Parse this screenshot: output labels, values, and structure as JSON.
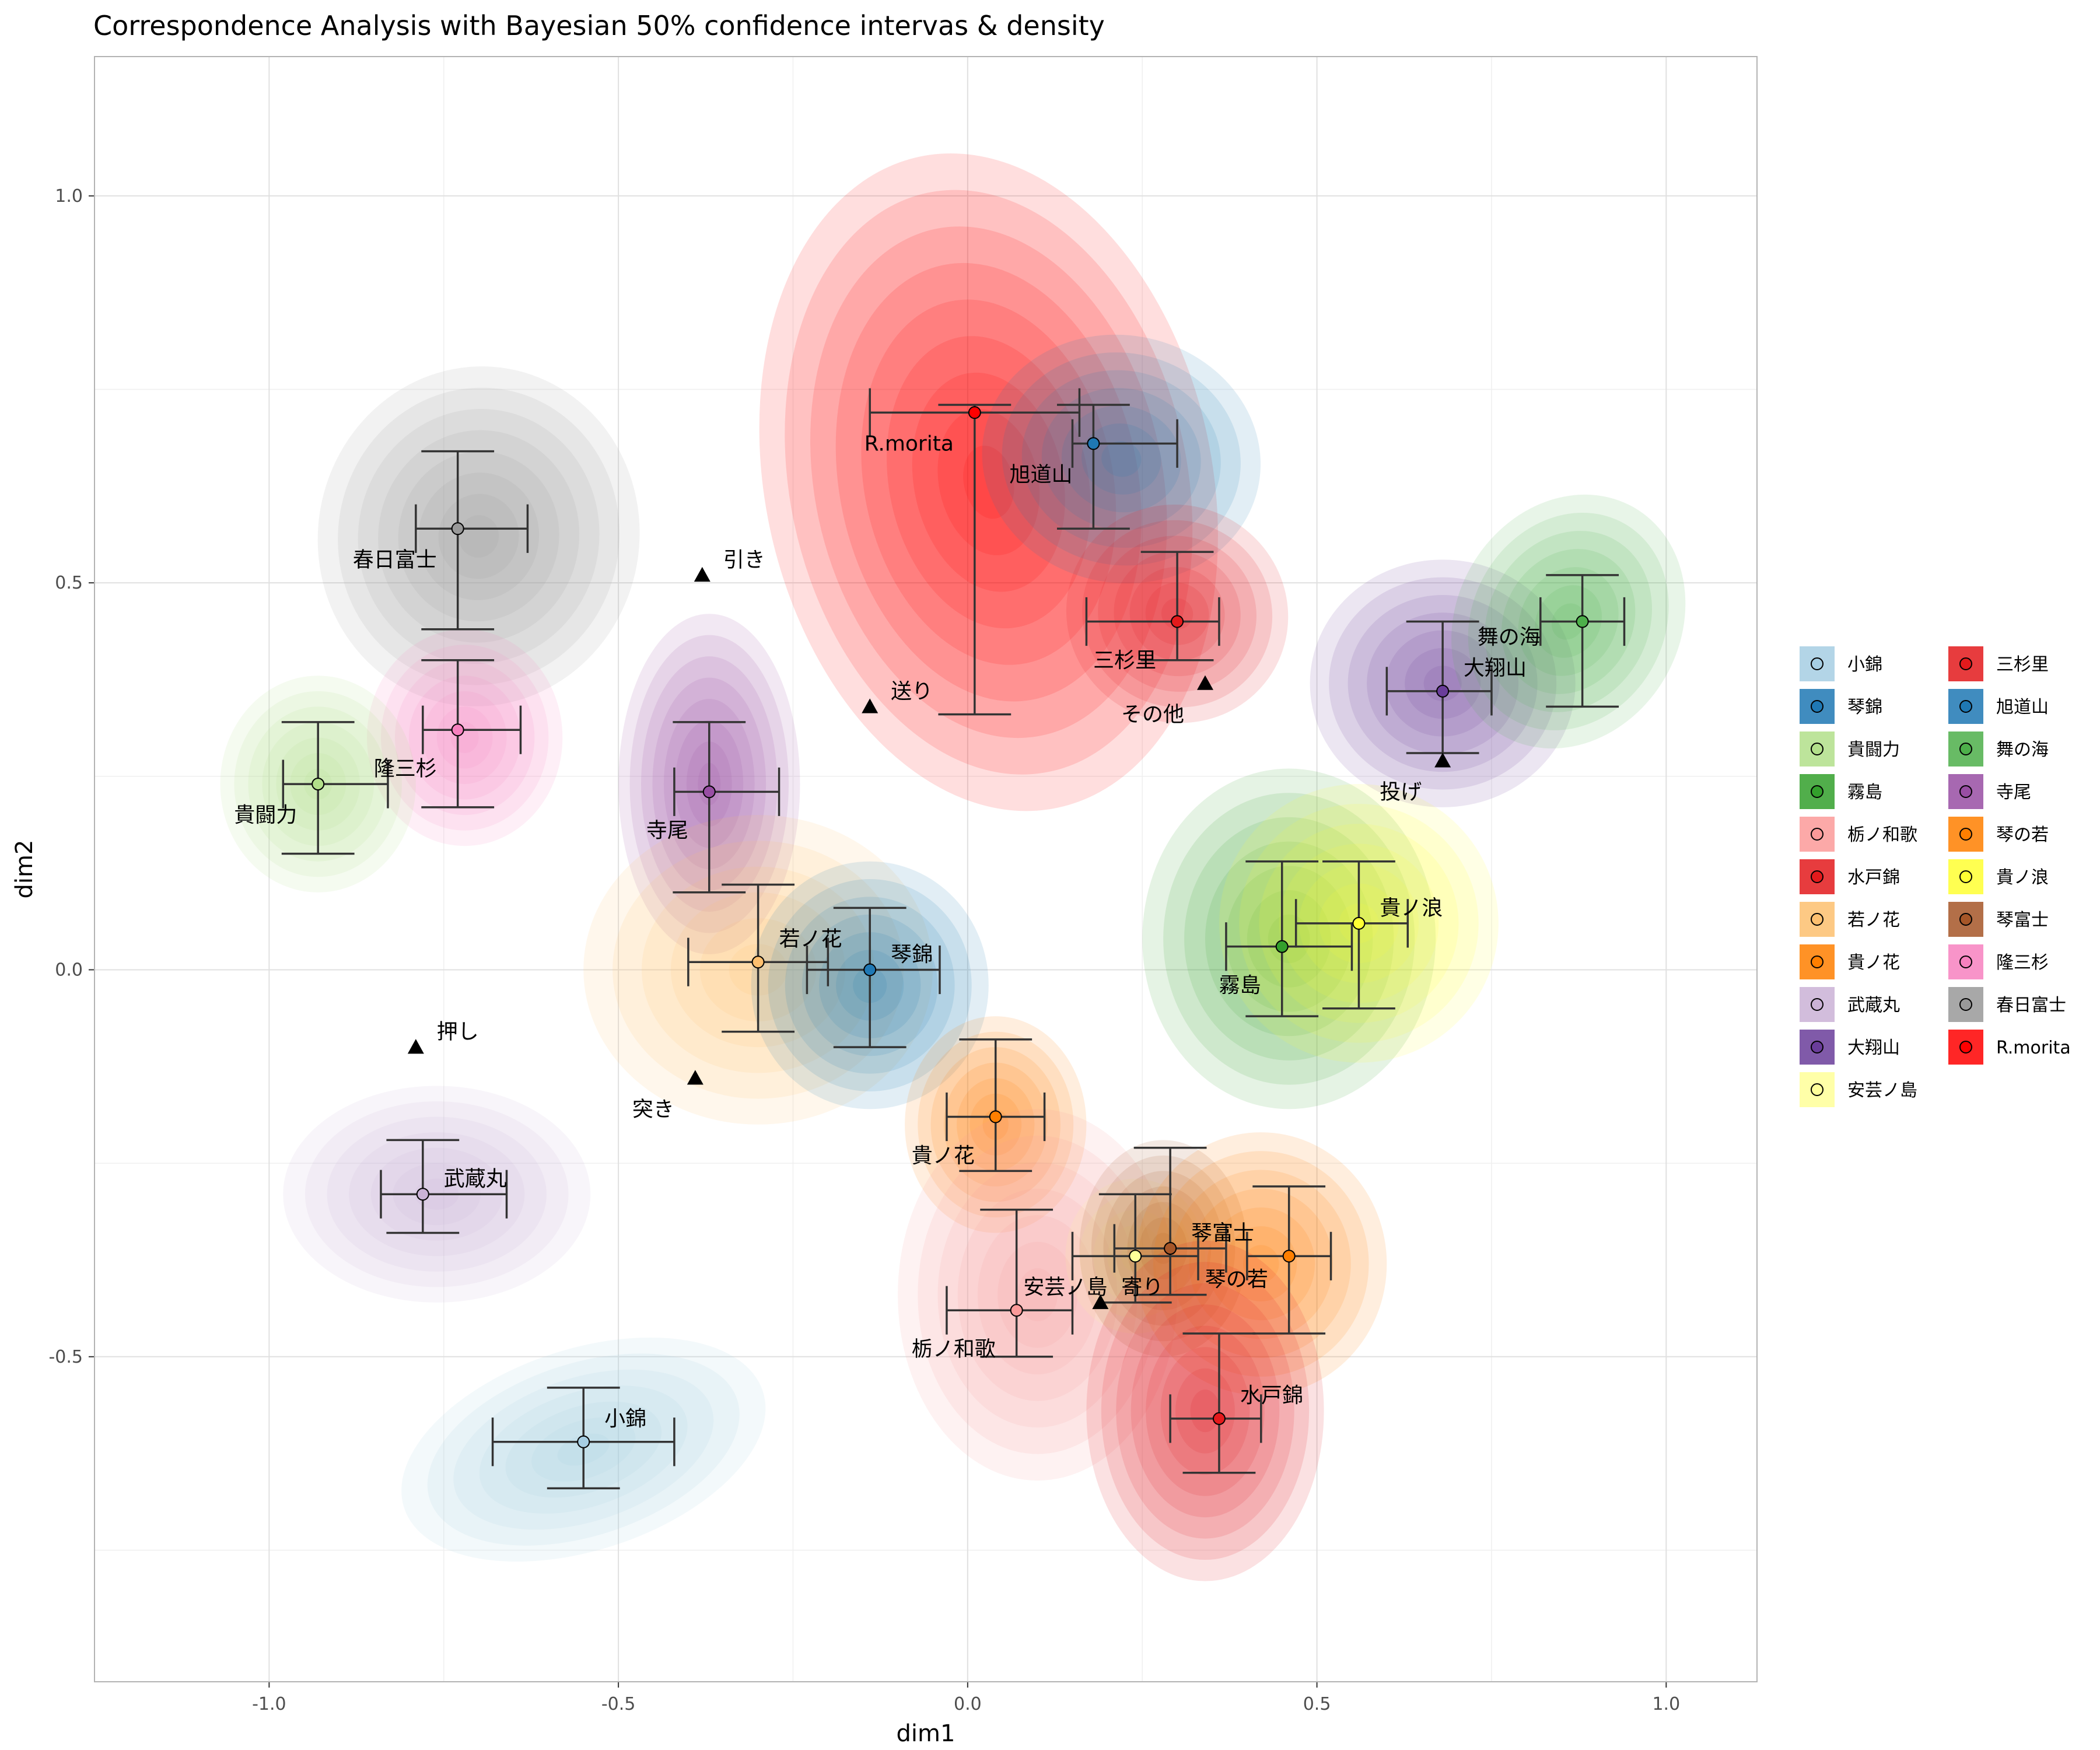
{
  "chart_data": {
    "type": "scatter",
    "title": "Correspondence Analysis with Bayesian 50% confidence intervas & density",
    "xlabel": "dim1",
    "ylabel": "dim2",
    "xlim": [
      -1.25,
      1.13
    ],
    "ylim": [
      -0.92,
      1.18
    ],
    "x_ticks": [
      -1.0,
      -0.5,
      0.0,
      0.5,
      1.0
    ],
    "x_tick_labels": [
      "-1.0",
      "-0.5",
      "0.0",
      "0.5",
      "1.0"
    ],
    "y_ticks": [
      -0.5,
      0.0,
      0.5,
      1.0
    ],
    "y_tick_labels": [
      "-0.5",
      "0.0",
      "0.5",
      "1.0"
    ],
    "grid": true,
    "legend_position": "right",
    "series": [
      {
        "name": "小錦",
        "color": "#a6cee3",
        "x": -0.55,
        "y": -0.61,
        "x_lo": -0.68,
        "x_hi": -0.42,
        "y_lo": -0.67,
        "y_hi": -0.54,
        "label": "小錦",
        "label_dx": 0.03,
        "label_dy": 0.03
      },
      {
        "name": "琴錦",
        "color": "#1f78b4",
        "x": -0.14,
        "y": 0.0,
        "x_lo": -0.23,
        "x_hi": -0.04,
        "y_lo": -0.1,
        "y_hi": 0.08,
        "label": "琴錦",
        "label_dx": 0.03,
        "label_dy": 0.02
      },
      {
        "name": "貴闘力",
        "color": "#b2df8a",
        "x": -0.93,
        "y": 0.24,
        "x_lo": -0.98,
        "x_hi": -0.83,
        "y_lo": 0.15,
        "y_hi": 0.32,
        "label": "貴闘力",
        "label_dx": -0.03,
        "label_dy": -0.04
      },
      {
        "name": "霧島",
        "color": "#33a02c",
        "x": 0.45,
        "y": 0.03,
        "x_lo": 0.37,
        "x_hi": 0.55,
        "y_lo": -0.06,
        "y_hi": 0.14,
        "label": "霧島",
        "label_dx": -0.03,
        "label_dy": -0.05
      },
      {
        "name": "栃ノ和歌",
        "color": "#fb9a99",
        "x": 0.07,
        "y": -0.44,
        "x_lo": -0.03,
        "x_hi": 0.15,
        "y_lo": -0.5,
        "y_hi": -0.31,
        "label": "栃ノ和歌",
        "label_dx": -0.03,
        "label_dy": -0.05
      },
      {
        "name": "水戸錦",
        "color": "#e31a1c",
        "x": 0.36,
        "y": -0.58,
        "x_lo": 0.29,
        "x_hi": 0.42,
        "y_lo": -0.65,
        "y_hi": -0.47,
        "label": "水戸錦",
        "label_dx": 0.03,
        "label_dy": 0.03
      },
      {
        "name": "若ノ花",
        "color": "#fdbf6f",
        "x": -0.3,
        "y": 0.01,
        "x_lo": -0.4,
        "x_hi": -0.2,
        "y_lo": -0.08,
        "y_hi": 0.11,
        "label": "若ノ花",
        "label_dx": 0.03,
        "label_dy": 0.03
      },
      {
        "name": "貴ノ花",
        "color": "#ff7f00",
        "x": 0.04,
        "y": -0.19,
        "x_lo": -0.03,
        "x_hi": 0.11,
        "y_lo": -0.26,
        "y_hi": -0.09,
        "label": "貴ノ花",
        "label_dx": -0.03,
        "label_dy": -0.05
      },
      {
        "name": "武蔵丸",
        "color": "#cab2d6",
        "x": -0.78,
        "y": -0.29,
        "x_lo": -0.84,
        "x_hi": -0.66,
        "y_lo": -0.34,
        "y_hi": -0.22,
        "label": "武蔵丸",
        "label_dx": 0.03,
        "label_dy": 0.02
      },
      {
        "name": "大翔山",
        "color": "#6a3d9a",
        "x": 0.68,
        "y": 0.36,
        "x_lo": 0.6,
        "x_hi": 0.75,
        "y_lo": 0.28,
        "y_hi": 0.45,
        "label": "大翔山",
        "label_dx": 0.03,
        "label_dy": 0.03
      },
      {
        "name": "安芸ノ島",
        "color": "#ffff99",
        "x": 0.24,
        "y": -0.37,
        "x_lo": 0.15,
        "x_hi": 0.33,
        "y_lo": -0.43,
        "y_hi": -0.29,
        "label": "安芸ノ島",
        "label_dx": -0.04,
        "label_dy": -0.04
      },
      {
        "name": "三杉里",
        "color": "#e31a1c",
        "x": 0.3,
        "y": 0.45,
        "x_lo": 0.17,
        "x_hi": 0.36,
        "y_lo": 0.4,
        "y_hi": 0.54,
        "label": "三杉里",
        "label_dx": -0.03,
        "label_dy": -0.05
      },
      {
        "name": "旭道山",
        "color": "#1f78b4",
        "x": 0.18,
        "y": 0.68,
        "x_lo": 0.15,
        "x_hi": 0.3,
        "y_lo": 0.57,
        "y_hi": 0.73,
        "label": "旭道山",
        "label_dx": -0.03,
        "label_dy": -0.04
      },
      {
        "name": "舞の海",
        "color": "#4daf4a",
        "x": 0.88,
        "y": 0.45,
        "x_lo": 0.82,
        "x_hi": 0.94,
        "y_lo": 0.34,
        "y_hi": 0.51,
        "label": "舞の海",
        "label_dx": -0.06,
        "label_dy": -0.02
      },
      {
        "name": "寺尾",
        "color": "#984ea3",
        "x": -0.37,
        "y": 0.23,
        "x_lo": -0.42,
        "x_hi": -0.27,
        "y_lo": 0.1,
        "y_hi": 0.32,
        "label": "寺尾",
        "label_dx": -0.03,
        "label_dy": -0.05
      },
      {
        "name": "琴の若",
        "color": "#ff7f00",
        "x": 0.46,
        "y": -0.37,
        "x_lo": 0.4,
        "x_hi": 0.52,
        "y_lo": -0.47,
        "y_hi": -0.28,
        "label": "琴の若",
        "label_dx": -0.03,
        "label_dy": -0.03
      },
      {
        "name": "貴ノ浪",
        "color": "#ffff33",
        "x": 0.56,
        "y": 0.06,
        "x_lo": 0.47,
        "x_hi": 0.63,
        "y_lo": -0.05,
        "y_hi": 0.14,
        "label": "貴ノ浪",
        "label_dx": 0.03,
        "label_dy": 0.02
      },
      {
        "name": "琴富士",
        "color": "#a65628",
        "x": 0.29,
        "y": -0.36,
        "x_lo": 0.21,
        "x_hi": 0.37,
        "y_lo": -0.42,
        "y_hi": -0.23,
        "label": "琴富士",
        "label_dx": 0.03,
        "label_dy": 0.02
      },
      {
        "name": "隆三杉",
        "color": "#f781bf",
        "x": -0.73,
        "y": 0.31,
        "x_lo": -0.78,
        "x_hi": -0.64,
        "y_lo": 0.21,
        "y_hi": 0.4,
        "label": "隆三杉",
        "label_dx": -0.03,
        "label_dy": -0.05
      },
      {
        "name": "春日富士",
        "color": "#999999",
        "x": -0.73,
        "y": 0.57,
        "x_lo": -0.79,
        "x_hi": -0.63,
        "y_lo": 0.44,
        "y_hi": 0.67,
        "label": "春日富士",
        "label_dx": -0.03,
        "label_dy": -0.04
      },
      {
        "name": "R.morita",
        "color": "#ff0000",
        "x": 0.01,
        "y": 0.72,
        "x_lo": -0.14,
        "x_hi": 0.16,
        "y_lo": 0.33,
        "y_hi": 0.73,
        "label": "R.morita",
        "label_dx": -0.03,
        "label_dy": -0.04
      }
    ],
    "annotations": [
      {
        "label": "押し",
        "x": -0.79,
        "y": -0.1,
        "label_dx": 0.03,
        "label_dy": 0.02
      },
      {
        "label": "突き",
        "x": -0.39,
        "y": -0.14,
        "label_dx": -0.03,
        "label_dy": -0.04
      },
      {
        "label": "引き",
        "x": -0.38,
        "y": 0.51,
        "label_dx": 0.03,
        "label_dy": 0.02
      },
      {
        "label": "送り",
        "x": -0.14,
        "y": 0.34,
        "label_dx": 0.03,
        "label_dy": 0.02
      },
      {
        "label": "その他",
        "x": 0.34,
        "y": 0.37,
        "label_dx": -0.03,
        "label_dy": -0.04
      },
      {
        "label": "投げ",
        "x": 0.68,
        "y": 0.27,
        "label_dx": -0.03,
        "label_dy": -0.04
      },
      {
        "label": "寄り",
        "x": 0.19,
        "y": -0.43,
        "label_dx": 0.03,
        "label_dy": 0.02
      }
    ],
    "densities": [
      {
        "series": "R.morita",
        "color": "#ff0000",
        "cx": 0.03,
        "cy": 0.63,
        "rx": 0.32,
        "ry": 0.43,
        "rot": 12,
        "levels": 9
      },
      {
        "series": "旭道山",
        "color": "#1f78b4",
        "cx": 0.22,
        "cy": 0.66,
        "rx": 0.2,
        "ry": 0.16,
        "rot": -10,
        "levels": 7
      },
      {
        "series": "三杉里",
        "color": "#e31a1c",
        "cx": 0.3,
        "cy": 0.46,
        "rx": 0.16,
        "ry": 0.14,
        "rot": -30,
        "levels": 7
      },
      {
        "series": "春日富士",
        "color": "#999999",
        "cx": -0.7,
        "cy": 0.56,
        "rx": 0.23,
        "ry": 0.22,
        "rot": -10,
        "levels": 8
      },
      {
        "series": "隆三杉",
        "color": "#f781bf",
        "cx": -0.72,
        "cy": 0.3,
        "rx": 0.14,
        "ry": 0.14,
        "rot": 0,
        "levels": 7
      },
      {
        "series": "貴闘力",
        "color": "#b2df8a",
        "cx": -0.93,
        "cy": 0.24,
        "rx": 0.14,
        "ry": 0.14,
        "rot": 0,
        "levels": 7
      },
      {
        "series": "寺尾",
        "color": "#984ea3",
        "cx": -0.37,
        "cy": 0.24,
        "rx": 0.13,
        "ry": 0.22,
        "rot": 0,
        "levels": 8
      },
      {
        "series": "若ノ花",
        "color": "#fdbf6f",
        "cx": -0.3,
        "cy": 0.0,
        "rx": 0.25,
        "ry": 0.2,
        "rot": 0,
        "levels": 6
      },
      {
        "series": "琴錦",
        "color": "#1f78b4",
        "cx": -0.14,
        "cy": -0.02,
        "rx": 0.17,
        "ry": 0.16,
        "rot": 0,
        "levels": 7
      },
      {
        "series": "武蔵丸",
        "color": "#cab2d6",
        "cx": -0.76,
        "cy": -0.29,
        "rx": 0.22,
        "ry": 0.14,
        "rot": 0,
        "levels": 7
      },
      {
        "series": "小錦",
        "color": "#a6cee3",
        "cx": -0.55,
        "cy": -0.62,
        "rx": 0.27,
        "ry": 0.13,
        "rot": 18,
        "levels": 7
      },
      {
        "series": "大翔山",
        "color": "#6a3d9a",
        "cx": 0.68,
        "cy": 0.37,
        "rx": 0.19,
        "ry": 0.16,
        "rot": 0,
        "levels": 7
      },
      {
        "series": "舞の海",
        "color": "#4daf4a",
        "cx": 0.86,
        "cy": 0.45,
        "rx": 0.16,
        "ry": 0.17,
        "rot": -30,
        "levels": 7
      },
      {
        "series": "霧島",
        "color": "#33a02c",
        "cx": 0.46,
        "cy": 0.04,
        "rx": 0.21,
        "ry": 0.22,
        "rot": 0,
        "levels": 7
      },
      {
        "series": "貴ノ浪",
        "color": "#ffff33",
        "cx": 0.56,
        "cy": 0.06,
        "rx": 0.2,
        "ry": 0.18,
        "rot": -20,
        "levels": 7
      },
      {
        "series": "貴ノ花",
        "color": "#ff7f00",
        "cx": 0.04,
        "cy": -0.2,
        "rx": 0.13,
        "ry": 0.14,
        "rot": 0,
        "levels": 7
      },
      {
        "series": "栃ノ和歌",
        "color": "#fb9a99",
        "cx": 0.1,
        "cy": -0.42,
        "rx": 0.2,
        "ry": 0.24,
        "rot": 0,
        "levels": 7
      },
      {
        "series": "安芸ノ島",
        "color": "#ffff99",
        "cx": 0.24,
        "cy": -0.37,
        "rx": 0.1,
        "ry": 0.1,
        "rot": 0,
        "levels": 5
      },
      {
        "series": "琴富士",
        "color": "#a65628",
        "cx": 0.28,
        "cy": -0.36,
        "rx": 0.12,
        "ry": 0.14,
        "rot": 0,
        "levels": 7
      },
      {
        "series": "琴の若",
        "color": "#ff7f00",
        "cx": 0.42,
        "cy": -0.38,
        "rx": 0.18,
        "ry": 0.17,
        "rot": 0,
        "levels": 7
      },
      {
        "series": "水戸錦",
        "color": "#e31a1c",
        "cx": 0.34,
        "cy": -0.57,
        "rx": 0.17,
        "ry": 0.22,
        "rot": 0,
        "levels": 8
      }
    ]
  }
}
